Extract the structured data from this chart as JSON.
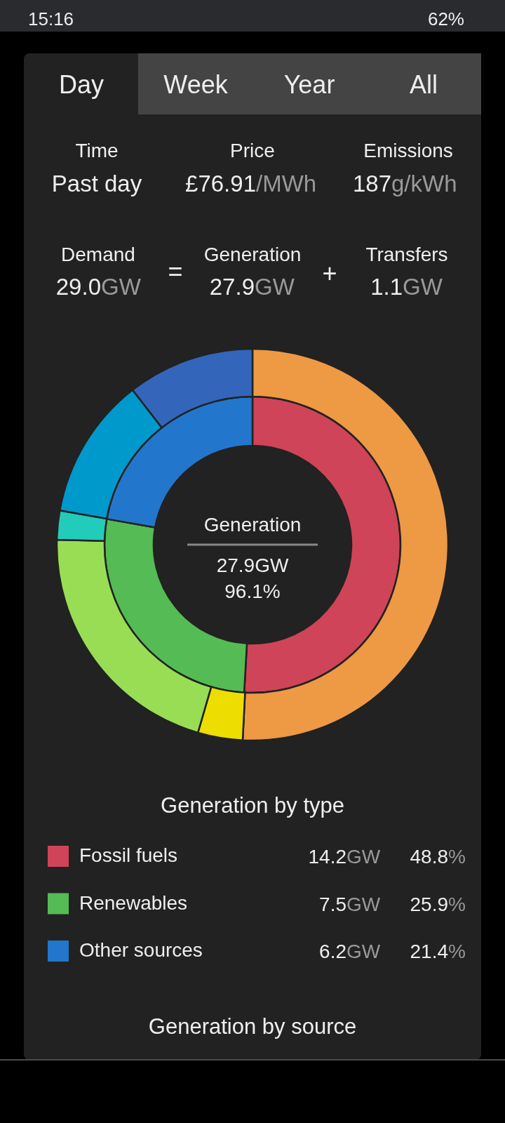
{
  "chart_data": {
    "type": "donut",
    "legend": "bottom",
    "legend_title": "Generation by type",
    "categories": [
      "Fossil fuels",
      "Renewables",
      "Other sources"
    ],
    "series": [
      {
        "values": [
          14.2,
          7.5,
          6.2
        ],
        "colors": [
          "#cf4458",
          "#55bb55",
          "#2277cc"
        ],
        "value_labels": [
          "14.2GW",
          "7.5GW",
          "6.2GW"
        ]
      },
      {
        "x": [
          null,
          null,
          null,
          null,
          null,
          null
        ],
        "values": [
          50.8,
          3.7,
          20.9,
          2.4,
          11.7,
          10.5
        ],
        "colors": [
          "#ee9944",
          "#eedd00",
          "#99dd55",
          "#22ccbb",
          "#0099cc",
          "#3366bb"
        ]
      }
    ],
    "annotations": [
      "15:16",
      "62%",
      "Day",
      "Week",
      "Year",
      "All",
      "Time",
      "Past day",
      "Price",
      "£76.91/MWh",
      "Emissions",
      "187g/kWh",
      "Demand",
      "29.0GW",
      "=",
      "Generation",
      "27.9GW",
      "+",
      "Transfers",
      "1.1GW",
      "Generation",
      "27.9GW",
      "96.1%",
      "48.8%",
      "25.9%",
      "21.4%",
      "Generation by source"
    ]
  }
}
